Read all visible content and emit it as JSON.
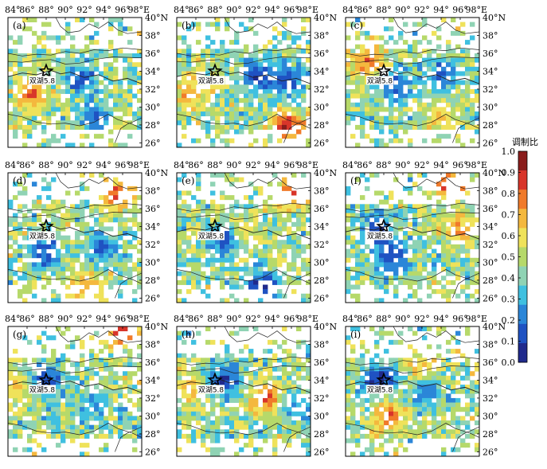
{
  "figure": {
    "colorbar": {
      "title": "调制比",
      "ticks": [
        "1.0",
        "0.9",
        "0.8",
        "0.7",
        "0.6",
        "0.5",
        "0.4",
        "0.3",
        "0.2",
        "0.1",
        "0.0"
      ],
      "colors": [
        "#202a8c",
        "#1f52c2",
        "#2b86d8",
        "#3fc0e0",
        "#8fd3b4",
        "#b6d96a",
        "#efe25a",
        "#f4b83e",
        "#f07a2a",
        "#d8352a",
        "#8a1d1c"
      ]
    },
    "lon_ticks": [
      "84°",
      "86°",
      "88°",
      "90°",
      "92°",
      "94°",
      "96°",
      "98°E"
    ],
    "lat_ticks": [
      "40°N",
      "38°",
      "36°",
      "34°",
      "32°",
      "30°",
      "28°",
      "26°"
    ],
    "earthquake_label": "双湖5.8",
    "panels": [
      {
        "id": "a",
        "label": "(a)",
        "seed": 11,
        "hot": [
          [
            94.5,
            28.5,
            0.85
          ],
          [
            86.5,
            31.5,
            0.8
          ]
        ],
        "cold": [
          [
            91.5,
            33.2,
            0.15
          ],
          [
            93.5,
            28.8,
            0.1
          ]
        ]
      },
      {
        "id": "b",
        "label": "(b)",
        "seed": 23,
        "hot": [
          [
            95.5,
            27.8,
            0.9
          ],
          [
            85.5,
            31.5,
            0.7
          ]
        ],
        "cold": [
          [
            92.5,
            33.5,
            0.1
          ],
          [
            95.5,
            33.0,
            0.1
          ]
        ]
      },
      {
        "id": "c",
        "label": "(c)",
        "seed": 37,
        "hot": [
          [
            86.5,
            35.0,
            0.8
          ],
          [
            94.0,
            29.0,
            0.65
          ]
        ],
        "cold": [
          [
            89.0,
            32.5,
            0.15
          ],
          [
            94.0,
            33.5,
            0.15
          ]
        ]
      },
      {
        "id": "d",
        "label": "(d)",
        "seed": 41,
        "hot": [
          [
            95.5,
            37.5,
            0.85
          ],
          [
            92.5,
            27.5,
            0.7
          ]
        ],
        "cold": [
          [
            88.0,
            31.0,
            0.15
          ],
          [
            94.0,
            31.5,
            0.2
          ]
        ]
      },
      {
        "id": "e",
        "label": "(e)",
        "seed": 53,
        "hot": [
          [
            96.0,
            37.8,
            0.8
          ],
          [
            90.5,
            33.0,
            0.7
          ]
        ],
        "cold": [
          [
            93.0,
            27.2,
            0.05
          ],
          [
            89.0,
            32.5,
            0.15
          ]
        ]
      },
      {
        "id": "f",
        "label": "(f)",
        "seed": 67,
        "hot": [
          [
            95.0,
            38.8,
            0.9
          ],
          [
            96.0,
            33.5,
            0.7
          ]
        ],
        "cold": [
          [
            87.5,
            33.5,
            0.1
          ],
          [
            89.0,
            30.5,
            0.1
          ]
        ]
      },
      {
        "id": "g",
        "label": "(g)",
        "seed": 71,
        "hot": [
          [
            96.0,
            39.3,
            0.85
          ],
          [
            85.0,
            33.5,
            0.7
          ]
        ],
        "cold": [
          [
            88.0,
            34.0,
            0.1
          ],
          [
            93.0,
            31.5,
            0.25
          ]
        ]
      },
      {
        "id": "h",
        "label": "(h)",
        "seed": 83,
        "hot": [
          [
            93.5,
            32.0,
            0.85
          ],
          [
            85.5,
            33.0,
            0.7
          ]
        ],
        "cold": [
          [
            89.0,
            34.0,
            0.1
          ],
          [
            96.5,
            31.0,
            0.25
          ]
        ]
      },
      {
        "id": "i",
        "label": "(i)",
        "seed": 97,
        "hot": [
          [
            88.5,
            30.0,
            0.8
          ],
          [
            92.0,
            35.0,
            0.7
          ]
        ],
        "cold": [
          [
            87.5,
            34.0,
            0.05
          ],
          [
            92.5,
            32.5,
            0.2
          ]
        ]
      }
    ]
  }
}
